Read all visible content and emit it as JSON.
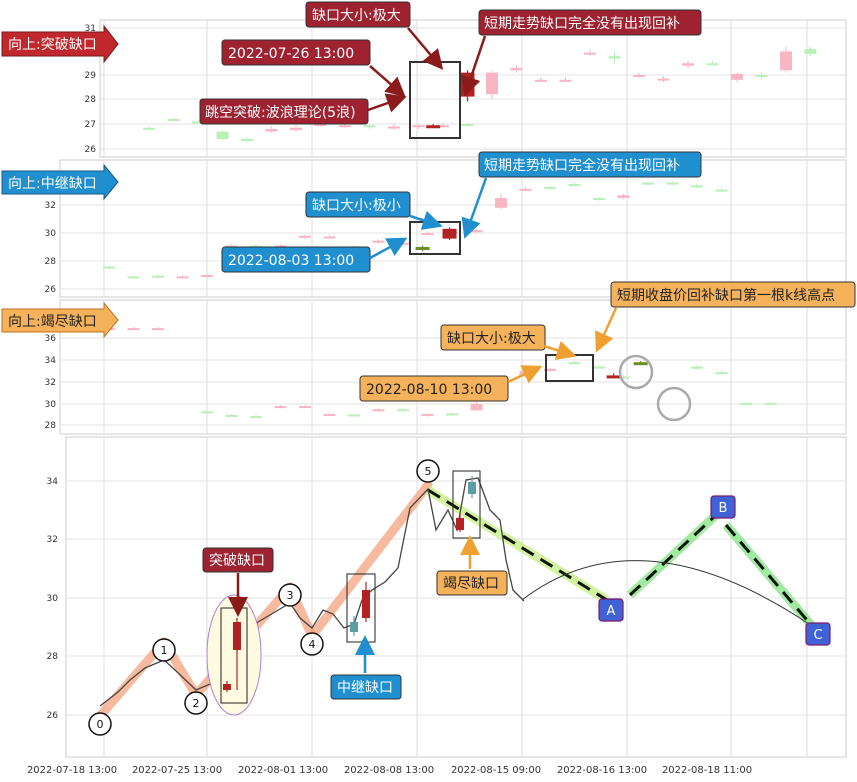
{
  "chart_data": [
    {
      "panel": "top",
      "type": "candlestick",
      "title": "向上:突破缺口",
      "ylim": [
        26,
        31
      ],
      "yticks": [
        26,
        27,
        28,
        29,
        31
      ],
      "candles": [
        {
          "x": 2,
          "o": 26.85,
          "c": 26.8,
          "h": 26.9,
          "l": 26.75
        },
        {
          "x": 3,
          "o": 27.2,
          "c": 27.15,
          "h": 27.25,
          "l": 27.1
        },
        {
          "x": 4,
          "o": 27.1,
          "c": 27.05,
          "h": 27.15,
          "l": 27.0
        },
        {
          "x": 5,
          "o": 26.7,
          "c": 26.4,
          "h": 26.75,
          "l": 26.35
        },
        {
          "x": 6,
          "o": 26.4,
          "c": 26.35,
          "h": 26.45,
          "l": 26.3
        },
        {
          "x": 7,
          "o": 26.7,
          "c": 26.8,
          "h": 26.9,
          "l": 26.65
        },
        {
          "x": 8,
          "o": 26.75,
          "c": 26.85,
          "h": 26.95,
          "l": 26.7
        },
        {
          "x": 9,
          "o": 27.0,
          "c": 27.0,
          "h": 27.1,
          "l": 26.9
        },
        {
          "x": 10,
          "o": 26.9,
          "c": 26.95,
          "h": 27.05,
          "l": 26.85
        },
        {
          "x": 11,
          "o": 26.95,
          "c": 26.9,
          "h": 27.0,
          "l": 26.8
        },
        {
          "x": 12,
          "o": 26.85,
          "c": 26.9,
          "h": 27.0,
          "l": 26.75
        },
        {
          "x": 13,
          "o": 26.9,
          "c": 26.95,
          "h": 27.0,
          "l": 26.8
        },
        {
          "x": 14,
          "o": 26.95,
          "c": 26.95,
          "h": 27.05,
          "l": 26.85
        },
        {
          "x": 15,
          "o": 27.0,
          "c": 26.95,
          "h": 27.05,
          "l": 26.9
        },
        {
          "x": 16,
          "o": 28.2,
          "c": 29.1,
          "h": 29.2,
          "l": 28.0
        },
        {
          "x": 17,
          "o": 29.2,
          "c": 29.3,
          "h": 29.4,
          "l": 29.1
        },
        {
          "x": 18,
          "o": 28.8,
          "c": 28.8,
          "h": 28.9,
          "l": 28.7
        },
        {
          "x": 19,
          "o": 28.8,
          "c": 28.8,
          "h": 28.9,
          "l": 28.7
        },
        {
          "x": 20,
          "o": 29.9,
          "c": 29.95,
          "h": 30.1,
          "l": 29.8
        },
        {
          "x": 21,
          "o": 29.8,
          "c": 29.7,
          "h": 30.0,
          "l": 29.5
        },
        {
          "x": 22,
          "o": 29.0,
          "c": 29.0,
          "h": 29.1,
          "l": 28.9
        },
        {
          "x": 23,
          "o": 28.8,
          "c": 28.85,
          "h": 28.95,
          "l": 28.7
        },
        {
          "x": 24,
          "o": 29.4,
          "c": 29.5,
          "h": 29.6,
          "l": 29.3
        },
        {
          "x": 25,
          "o": 29.5,
          "c": 29.45,
          "h": 29.6,
          "l": 29.4
        },
        {
          "x": 26,
          "o": 28.8,
          "c": 29.05,
          "h": 29.1,
          "l": 28.7
        },
        {
          "x": 27,
          "o": 29.0,
          "c": 28.95,
          "h": 29.1,
          "l": 28.8
        },
        {
          "x": 28,
          "o": 29.2,
          "c": 30.0,
          "h": 30.2,
          "l": 29.1
        },
        {
          "x": 29,
          "o": 30.1,
          "c": 29.9,
          "h": 30.2,
          "l": 29.8
        }
      ],
      "highlight": [
        {
          "x": 13.6,
          "o": 26.95,
          "c": 26.9,
          "h": 27.0,
          "l": 26.85
        },
        {
          "x": 15.0,
          "o": 28.1,
          "c": 29.1,
          "h": 29.2,
          "l": 27.9
        }
      ],
      "annotations": [
        "缺口大小:极大",
        "2022-07-26 13:00",
        "跳空突破:波浪理论(5浪)",
        "短期走势缺口完全没有出现回补"
      ]
    },
    {
      "panel": "second",
      "type": "candlestick",
      "title": "向上:中继缺口",
      "ylim": [
        26,
        33.5
      ],
      "yticks": [
        26,
        28,
        30,
        32
      ],
      "candles": [
        {
          "x": 2,
          "o": 27.6,
          "c": 27.55,
          "h": 27.7,
          "l": 27.45
        },
        {
          "x": 3,
          "o": 26.9,
          "c": 26.85,
          "h": 27.0,
          "l": 26.75
        },
        {
          "x": 4,
          "o": 26.95,
          "c": 26.9,
          "h": 27.05,
          "l": 26.8
        },
        {
          "x": 5,
          "o": 26.9,
          "c": 26.9,
          "h": 27.0,
          "l": 26.8
        },
        {
          "x": 6,
          "o": 26.95,
          "c": 27.0,
          "h": 27.05,
          "l": 26.85
        },
        {
          "x": 7,
          "o": 28.1,
          "c": 29.1,
          "h": 29.2,
          "l": 28.0
        },
        {
          "x": 8,
          "o": 29.1,
          "c": 29.0,
          "h": 29.2,
          "l": 28.9
        },
        {
          "x": 9,
          "o": 29.0,
          "c": 29.1,
          "h": 29.2,
          "l": 28.9
        },
        {
          "x": 10,
          "o": 29.7,
          "c": 29.8,
          "h": 29.9,
          "l": 29.6
        },
        {
          "x": 11,
          "o": 29.7,
          "c": 29.75,
          "h": 29.85,
          "l": 29.6
        },
        {
          "x": 12,
          "o": 29.05,
          "c": 29.0,
          "h": 29.15,
          "l": 28.9
        },
        {
          "x": 13,
          "o": 29.4,
          "c": 29.45,
          "h": 29.55,
          "l": 29.3
        },
        {
          "x": 14,
          "o": 29.3,
          "c": 29.3,
          "h": 29.4,
          "l": 29.2
        },
        {
          "x": 15,
          "o": 30.0,
          "c": 30.0,
          "h": 30.1,
          "l": 29.9
        },
        {
          "x": 16,
          "o": 30.1,
          "c": 30.1,
          "h": 30.2,
          "l": 30.0
        },
        {
          "x": 17,
          "o": 30.1,
          "c": 30.2,
          "h": 30.3,
          "l": 30.0
        },
        {
          "x": 18,
          "o": 31.8,
          "c": 32.5,
          "h": 32.8,
          "l": 31.7
        },
        {
          "x": 19,
          "o": 33.1,
          "c": 33.15,
          "h": 33.3,
          "l": 33.0
        },
        {
          "x": 20,
          "o": 33.3,
          "c": 33.25,
          "h": 33.4,
          "l": 33.1
        },
        {
          "x": 21,
          "o": 33.5,
          "c": 33.4,
          "h": 33.6,
          "l": 33.3
        },
        {
          "x": 22,
          "o": 32.5,
          "c": 32.4,
          "h": 32.6,
          "l": 32.3
        },
        {
          "x": 23,
          "o": 32.5,
          "c": 32.7,
          "h": 32.8,
          "l": 32.4
        },
        {
          "x": 24,
          "o": 33.6,
          "c": 33.5,
          "h": 33.7,
          "l": 33.4
        },
        {
          "x": 25,
          "o": 33.6,
          "c": 33.5,
          "h": 33.7,
          "l": 33.4
        },
        {
          "x": 26,
          "o": 33.4,
          "c": 33.3,
          "h": 33.5,
          "l": 33.2
        },
        {
          "x": 27,
          "o": 33.1,
          "c": 33.0,
          "h": 33.2,
          "l": 32.9
        }
      ],
      "highlight": [
        {
          "x": 14.8,
          "o": 29.0,
          "c": 28.85,
          "h": 29.1,
          "l": 28.7
        },
        {
          "x": 15.9,
          "o": 29.6,
          "c": 30.3,
          "h": 30.4,
          "l": 29.5
        }
      ],
      "annotations": [
        "缺口大小:极小",
        "2022-08-03 13:00",
        "短期走势缺口完全没有出现回补"
      ]
    },
    {
      "panel": "third",
      "type": "candlestick",
      "title": "向上:竭尽缺口",
      "ylim": [
        28,
        37
      ],
      "yticks": [
        28,
        30,
        32,
        34,
        36
      ],
      "candles": [
        {
          "x": 2,
          "o": 36.9,
          "c": 36.9,
          "h": 37.0,
          "l": 36.8
        },
        {
          "x": 3,
          "o": 36.9,
          "c": 36.9,
          "h": 37.0,
          "l": 36.8
        },
        {
          "x": 4,
          "o": 36.9,
          "c": 36.9,
          "h": 37.0,
          "l": 36.8
        },
        {
          "x": 6,
          "o": 29.3,
          "c": 29.2,
          "h": 29.45,
          "l": 29.0
        },
        {
          "x": 7,
          "o": 28.95,
          "c": 28.9,
          "h": 29.05,
          "l": 28.8
        },
        {
          "x": 8,
          "o": 28.85,
          "c": 28.8,
          "h": 28.95,
          "l": 28.7
        },
        {
          "x": 9,
          "o": 29.7,
          "c": 29.8,
          "h": 29.9,
          "l": 29.6
        },
        {
          "x": 10,
          "o": 29.8,
          "c": 29.8,
          "h": 29.9,
          "l": 29.7
        },
        {
          "x": 11,
          "o": 29.0,
          "c": 29.05,
          "h": 29.15,
          "l": 28.9
        },
        {
          "x": 12,
          "o": 29.0,
          "c": 28.9,
          "h": 29.1,
          "l": 28.8
        },
        {
          "x": 13,
          "o": 29.4,
          "c": 29.5,
          "h": 29.6,
          "l": 29.3
        },
        {
          "x": 14,
          "o": 29.5,
          "c": 29.45,
          "h": 29.6,
          "l": 29.4
        },
        {
          "x": 15,
          "o": 28.9,
          "c": 29.05,
          "h": 29.15,
          "l": 28.8
        },
        {
          "x": 16,
          "o": 29.1,
          "c": 29.0,
          "h": 29.2,
          "l": 28.9
        },
        {
          "x": 17,
          "o": 29.4,
          "c": 30.0,
          "h": 30.2,
          "l": 29.3
        },
        {
          "x": 18,
          "o": 30.8,
          "c": 31.2,
          "h": 31.3,
          "l": 30.7
        },
        {
          "x": 19,
          "o": 32.5,
          "c": 33.0,
          "h": 33.2,
          "l": 32.4
        },
        {
          "x": 20,
          "o": 33.0,
          "c": 33.2,
          "h": 33.3,
          "l": 32.9
        },
        {
          "x": 21,
          "o": 33.8,
          "c": 33.7,
          "h": 33.9,
          "l": 33.6
        },
        {
          "x": 22,
          "o": 33.4,
          "c": 33.3,
          "h": 33.5,
          "l": 33.2
        },
        {
          "x": 23,
          "o": 32.5,
          "c": 32.4,
          "h": 32.6,
          "l": 32.3
        },
        {
          "x": 26,
          "o": 33.4,
          "c": 33.2,
          "h": 33.5,
          "l": 33.1
        },
        {
          "x": 27,
          "o": 32.9,
          "c": 32.8,
          "h": 33.0,
          "l": 32.7
        },
        {
          "x": 28,
          "o": 30.1,
          "c": 30.0,
          "h": 30.2,
          "l": 29.9
        },
        {
          "x": 29,
          "o": 30.1,
          "c": 30.0,
          "h": 30.2,
          "l": 29.9
        }
      ],
      "highlight": [
        {
          "x": 22.6,
          "o": 32.5,
          "c": 32.6,
          "h": 32.8,
          "l": 32.4
        },
        {
          "x": 23.7,
          "o": 33.8,
          "c": 33.75,
          "h": 33.9,
          "l": 33.6
        }
      ],
      "annotations": [
        "缺口大小:极大",
        "2022-08-10 13:00",
        "短期收盘价回补缺口第一根k线高点"
      ]
    },
    {
      "panel": "bottom",
      "type": "line",
      "ylim": [
        25,
        35
      ],
      "yticks": [
        26,
        28,
        30,
        32,
        34
      ],
      "xticks": [
        "2022-07-18 13:00",
        "2022-07-25 13:00",
        "2022-08-01 13:00",
        "2022-08-08 13:00",
        "2022-08-15 09:00",
        "2022-08-16 13:00",
        "2022-08-18 11:00"
      ],
      "price_line": [
        {
          "x": 0,
          "y": 26.3
        },
        {
          "x": 1,
          "y": 26.8
        },
        {
          "x": 2,
          "y": 27.2
        },
        {
          "x": 3,
          "y": 27.5
        },
        {
          "x": 4,
          "y": 27.6
        },
        {
          "x": 5,
          "y": 27.9
        },
        {
          "x": 6,
          "y": 27.5
        },
        {
          "x": 7,
          "y": 27.0
        },
        {
          "x": 8,
          "y": 26.9
        },
        {
          "x": 9,
          "y": 26.95
        },
        {
          "x": 10,
          "y": 28.9
        },
        {
          "x": 11,
          "y": 29.2
        },
        {
          "x": 12,
          "y": 29.3
        },
        {
          "x": 13,
          "y": 29.7
        },
        {
          "x": 14,
          "y": 29.3
        },
        {
          "x": 15,
          "y": 28.9
        },
        {
          "x": 16,
          "y": 29.4
        },
        {
          "x": 17,
          "y": 29.6
        },
        {
          "x": 18,
          "y": 29.2
        },
        {
          "x": 19,
          "y": 29.0
        },
        {
          "x": 20,
          "y": 29.4
        },
        {
          "x": 21,
          "y": 29.9
        },
        {
          "x": 22,
          "y": 30.2
        },
        {
          "x": 23,
          "y": 31.5
        },
        {
          "x": 24,
          "y": 32.5
        },
        {
          "x": 25,
          "y": 33.3
        },
        {
          "x": 26,
          "y": 32.0
        },
        {
          "x": 27,
          "y": 33.3
        },
        {
          "x": 28,
          "y": 33.5
        },
        {
          "x": 29,
          "y": 32.5
        },
        {
          "x": 30,
          "y": 30.4
        },
        {
          "x": 31,
          "y": 29.9
        }
      ],
      "wave_points": [
        {
          "label": "0",
          "x": 0,
          "y": 26.3
        },
        {
          "label": "1",
          "x": 5,
          "y": 27.9
        },
        {
          "label": "2",
          "x": 8,
          "y": 26.9
        },
        {
          "label": "3",
          "x": 13,
          "y": 29.7
        },
        {
          "label": "4",
          "x": 15,
          "y": 28.9
        },
        {
          "label": "5",
          "x": 25.5,
          "y": 33.6
        },
        {
          "label": "A",
          "x": 38,
          "y": 30.0
        },
        {
          "label": "B",
          "x": 44,
          "y": 32.8
        },
        {
          "label": "C",
          "x": 50,
          "y": 29.0
        }
      ],
      "gap_candles": [
        {
          "name": "breakaway",
          "x": 9,
          "o": 26.9,
          "c": 26.95,
          "h": 27.0,
          "l": 26.85
        },
        {
          "name": "breakaway",
          "x": 10,
          "o": 28.2,
          "c": 29.1,
          "h": 29.2,
          "l": 27.0
        },
        {
          "name": "runaway",
          "x": 19,
          "o": 29.0,
          "c": 28.9,
          "h": 29.2,
          "l": 28.8
        },
        {
          "name": "runaway",
          "x": 20.5,
          "o": 29.3,
          "c": 30.4,
          "h": 30.5,
          "l": 29.2
        },
        {
          "name": "exhaustion",
          "x": 27.2,
          "o": 32.5,
          "c": 32.6,
          "h": 32.8,
          "l": 32.4
        },
        {
          "name": "exhaustion",
          "x": 28.4,
          "o": 33.7,
          "c": 33.8,
          "h": 34.0,
          "l": 33.6
        }
      ],
      "annotations": [
        "突破缺口",
        "中继缺口",
        "竭尽缺口"
      ]
    }
  ],
  "labels": {
    "top_title": "向上:突破缺口",
    "top_gap_size": "缺口大小:极大",
    "top_date": "2022-07-26 13:00",
    "top_wave": "跳空突破:波浪理论(5浪)",
    "top_note": "短期走势缺口完全没有出现回补",
    "mid_title": "向上:中继缺口",
    "mid_gap_size": "缺口大小:极小",
    "mid_date": "2022-08-03 13:00",
    "mid_note": "短期走势缺口完全没有出现回补",
    "ex_title": "向上:竭尽缺口",
    "ex_gap_size": "缺口大小:极大",
    "ex_date": "2022-08-10 13:00",
    "ex_note": "短期收盘价回补缺口第一根k线高点",
    "bottom_breakaway": "突破缺口",
    "bottom_runaway": "中继缺口",
    "bottom_exhaustion": "竭尽缺口"
  },
  "colors": {
    "up_light": "#f7b6c2",
    "down_light": "#b8f0b8",
    "up_dark": "#b22222",
    "down_dark": "#6b8e23",
    "red_box": "#a0232a",
    "blue_box": "#1f8fd0",
    "orange_box": "#f5b25a",
    "wave_up": "#f4a37f",
    "wave_down": "#c9f08a",
    "wave_abc": "#90e890"
  }
}
